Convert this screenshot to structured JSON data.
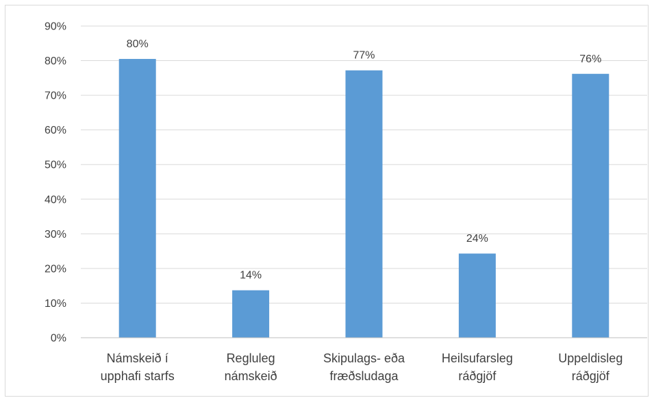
{
  "chart_data": {
    "type": "bar",
    "categories": [
      [
        "Námskeið í",
        "upphafi starfs"
      ],
      [
        "Regluleg",
        "námskeið"
      ],
      [
        "Skipulags- eða",
        "fræðsludaga"
      ],
      [
        "Heilsufarsleg",
        "ráðgjöf"
      ],
      [
        "Uppeldisleg",
        "ráðgjöf"
      ]
    ],
    "values": [
      80.5,
      13.7,
      77.2,
      24.3,
      76.2
    ],
    "data_labels": [
      "80%",
      "14%",
      "77%",
      "24%",
      "76%"
    ],
    "y_ticks": [
      "0%",
      "10%",
      "20%",
      "30%",
      "40%",
      "50%",
      "60%",
      "70%",
      "80%",
      "90%"
    ],
    "ylim": [
      0,
      90
    ],
    "grid": true,
    "bar_color": "#5b9bd5",
    "grid_color": "#d9d9d9",
    "title": "",
    "xlabel": "",
    "ylabel": ""
  }
}
